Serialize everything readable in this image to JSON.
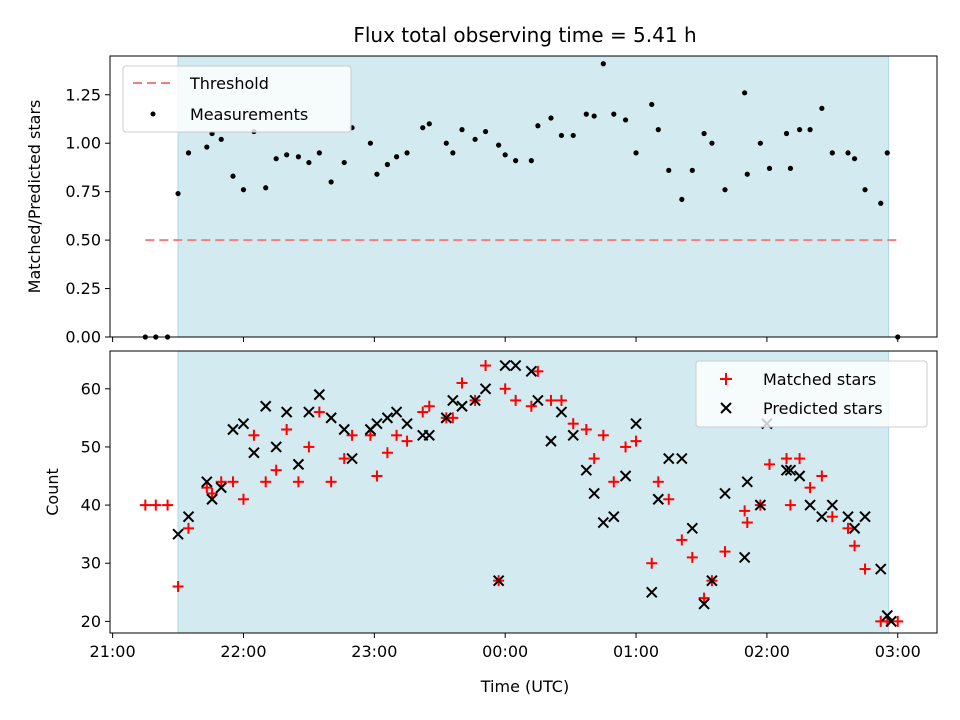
{
  "chart_data": [
    {
      "type": "scatter",
      "title": "Flux total observing time = 5.41 h",
      "xlabel": "",
      "ylabel": "Matched/Predicted stars",
      "ylim": [
        0,
        1.45
      ],
      "yticks": [
        "0.00",
        "0.25",
        "0.50",
        "0.75",
        "1.00",
        "1.25"
      ],
      "ytick_values": [
        0,
        0.25,
        0.5,
        0.75,
        1.0,
        1.25
      ],
      "xlim_hours": [
        21.0,
        3.3
      ],
      "shaded_span_hours": [
        21.5,
        2.93
      ],
      "shade_color": "#d3eaf0",
      "legend_position": "upper-left",
      "threshold": {
        "name": "Threshold",
        "y": 0.5,
        "x_start_hours": 21.25,
        "x_end_hours": 3.0,
        "color": "#f08080"
      },
      "series": [
        {
          "name": "Measurements",
          "color": "#000000",
          "points": [
            [
              21.25,
              0.0
            ],
            [
              21.33,
              0.0
            ],
            [
              21.42,
              0.0
            ],
            [
              21.5,
              0.74
            ],
            [
              21.58,
              0.95
            ],
            [
              21.72,
              0.98
            ],
            [
              21.76,
              1.05
            ],
            [
              21.83,
              1.02
            ],
            [
              21.92,
              0.83
            ],
            [
              22.0,
              0.76
            ],
            [
              22.08,
              1.06
            ],
            [
              22.17,
              0.77
            ],
            [
              22.25,
              0.92
            ],
            [
              22.33,
              0.94
            ],
            [
              22.42,
              0.93
            ],
            [
              22.5,
              0.9
            ],
            [
              22.58,
              0.95
            ],
            [
              22.67,
              0.8
            ],
            [
              22.77,
              0.9
            ],
            [
              22.83,
              1.08
            ],
            [
              22.97,
              1.0
            ],
            [
              23.02,
              0.84
            ],
            [
              23.1,
              0.89
            ],
            [
              23.17,
              0.93
            ],
            [
              23.25,
              0.95
            ],
            [
              23.37,
              1.08
            ],
            [
              23.42,
              1.1
            ],
            [
              23.55,
              1.0
            ],
            [
              23.6,
              0.95
            ],
            [
              23.67,
              1.07
            ],
            [
              23.77,
              1.02
            ],
            [
              23.85,
              1.06
            ],
            [
              23.95,
              0.99
            ],
            [
              24.0,
              0.94
            ],
            [
              24.08,
              0.91
            ],
            [
              24.2,
              0.91
            ],
            [
              24.25,
              1.09
            ],
            [
              24.35,
              1.13
            ],
            [
              24.43,
              1.04
            ],
            [
              24.52,
              1.04
            ],
            [
              24.62,
              1.15
            ],
            [
              24.68,
              1.14
            ],
            [
              24.75,
              1.41
            ],
            [
              24.83,
              1.15
            ],
            [
              24.92,
              1.12
            ],
            [
              25.0,
              0.95
            ],
            [
              25.12,
              1.2
            ],
            [
              25.17,
              1.07
            ],
            [
              25.25,
              0.86
            ],
            [
              25.35,
              0.71
            ],
            [
              25.43,
              0.86
            ],
            [
              25.52,
              1.05
            ],
            [
              25.58,
              1.0
            ],
            [
              25.68,
              0.76
            ],
            [
              25.83,
              1.26
            ],
            [
              25.85,
              0.84
            ],
            [
              25.95,
              1.0
            ],
            [
              26.02,
              0.87
            ],
            [
              26.15,
              1.05
            ],
            [
              26.18,
              0.87
            ],
            [
              26.25,
              1.07
            ],
            [
              26.33,
              1.07
            ],
            [
              26.42,
              1.18
            ],
            [
              26.5,
              0.95
            ],
            [
              26.62,
              0.95
            ],
            [
              26.67,
              0.92
            ],
            [
              26.75,
              0.76
            ],
            [
              26.87,
              0.69
            ],
            [
              26.92,
              0.95
            ],
            [
              27.0,
              0.0
            ]
          ]
        }
      ]
    },
    {
      "type": "scatter",
      "title": "",
      "xlabel": "Time (UTC)",
      "ylabel": "Count",
      "ylim": [
        18,
        66.5
      ],
      "yticks": [
        "20",
        "30",
        "40",
        "50",
        "60"
      ],
      "ytick_values": [
        20,
        30,
        40,
        50,
        60
      ],
      "xticks": [
        "21:00",
        "22:00",
        "23:00",
        "00:00",
        "01:00",
        "02:00",
        "03:00"
      ],
      "xtick_hours": [
        21,
        22,
        23,
        24,
        25,
        26,
        27
      ],
      "xlim_hours": [
        20.98,
        27.3
      ],
      "shaded_span_hours": [
        21.5,
        26.93
      ],
      "shade_color": "#d3eaf0",
      "legend_position": "upper-right",
      "series": [
        {
          "name": "Matched stars",
          "marker": "+",
          "color": "#ff0000",
          "points": [
            [
              21.25,
              40
            ],
            [
              21.33,
              40
            ],
            [
              21.42,
              40
            ],
            [
              21.5,
              26
            ],
            [
              21.58,
              36
            ],
            [
              21.72,
              43
            ],
            [
              21.76,
              42
            ],
            [
              21.83,
              44
            ],
            [
              21.92,
              44
            ],
            [
              22.0,
              41
            ],
            [
              22.08,
              52
            ],
            [
              22.17,
              44
            ],
            [
              22.25,
              46
            ],
            [
              22.33,
              53
            ],
            [
              22.42,
              44
            ],
            [
              22.5,
              50
            ],
            [
              22.58,
              56
            ],
            [
              22.67,
              44
            ],
            [
              22.77,
              48
            ],
            [
              22.83,
              52
            ],
            [
              22.97,
              52
            ],
            [
              23.02,
              45
            ],
            [
              23.1,
              49
            ],
            [
              23.17,
              52
            ],
            [
              23.25,
              51
            ],
            [
              23.37,
              56
            ],
            [
              23.42,
              57
            ],
            [
              23.55,
              55
            ],
            [
              23.6,
              55
            ],
            [
              23.67,
              61
            ],
            [
              23.77,
              58
            ],
            [
              23.85,
              64
            ],
            [
              23.95,
              27
            ],
            [
              24.0,
              60
            ],
            [
              24.08,
              58
            ],
            [
              24.2,
              57
            ],
            [
              24.25,
              63
            ],
            [
              24.35,
              58
            ],
            [
              24.43,
              58
            ],
            [
              24.52,
              54
            ],
            [
              24.62,
              53
            ],
            [
              24.68,
              48
            ],
            [
              24.75,
              52
            ],
            [
              24.83,
              44
            ],
            [
              24.92,
              50
            ],
            [
              25.0,
              51
            ],
            [
              25.12,
              30
            ],
            [
              25.17,
              44
            ],
            [
              25.25,
              41
            ],
            [
              25.35,
              34
            ],
            [
              25.43,
              31
            ],
            [
              25.52,
              24
            ],
            [
              25.58,
              27
            ],
            [
              25.68,
              32
            ],
            [
              25.83,
              39
            ],
            [
              25.85,
              37
            ],
            [
              25.95,
              40
            ],
            [
              26.02,
              47
            ],
            [
              26.15,
              48
            ],
            [
              26.18,
              40
            ],
            [
              26.25,
              48
            ],
            [
              26.33,
              43
            ],
            [
              26.42,
              45
            ],
            [
              26.5,
              38
            ],
            [
              26.62,
              36
            ],
            [
              26.67,
              33
            ],
            [
              26.75,
              29
            ],
            [
              26.87,
              20
            ],
            [
              26.92,
              20
            ],
            [
              27.0,
              20
            ]
          ]
        },
        {
          "name": "Predicted stars",
          "marker": "x",
          "color": "#000000",
          "points": [
            [
              21.5,
              35
            ],
            [
              21.58,
              38
            ],
            [
              21.72,
              44
            ],
            [
              21.76,
              41
            ],
            [
              21.83,
              43
            ],
            [
              21.92,
              53
            ],
            [
              22.0,
              54
            ],
            [
              22.08,
              49
            ],
            [
              22.17,
              57
            ],
            [
              22.25,
              50
            ],
            [
              22.33,
              56
            ],
            [
              22.42,
              47
            ],
            [
              22.5,
              56
            ],
            [
              22.58,
              59
            ],
            [
              22.67,
              55
            ],
            [
              22.77,
              53
            ],
            [
              22.83,
              48
            ],
            [
              22.97,
              53
            ],
            [
              23.02,
              54
            ],
            [
              23.1,
              55
            ],
            [
              23.17,
              56
            ],
            [
              23.25,
              54
            ],
            [
              23.37,
              52
            ],
            [
              23.42,
              52
            ],
            [
              23.55,
              55
            ],
            [
              23.6,
              58
            ],
            [
              23.67,
              57
            ],
            [
              23.77,
              58
            ],
            [
              23.85,
              60
            ],
            [
              23.95,
              27
            ],
            [
              24.0,
              64
            ],
            [
              24.08,
              64
            ],
            [
              24.2,
              63
            ],
            [
              24.25,
              58
            ],
            [
              24.35,
              51
            ],
            [
              24.43,
              56
            ],
            [
              24.52,
              52
            ],
            [
              24.62,
              46
            ],
            [
              24.68,
              42
            ],
            [
              24.75,
              37
            ],
            [
              24.83,
              38
            ],
            [
              24.92,
              45
            ],
            [
              25.0,
              54
            ],
            [
              25.12,
              25
            ],
            [
              25.17,
              41
            ],
            [
              25.25,
              48
            ],
            [
              25.35,
              48
            ],
            [
              25.43,
              36
            ],
            [
              25.52,
              23
            ],
            [
              25.58,
              27
            ],
            [
              25.68,
              42
            ],
            [
              25.83,
              31
            ],
            [
              25.85,
              44
            ],
            [
              25.95,
              40
            ],
            [
              26.0,
              54
            ],
            [
              26.15,
              46
            ],
            [
              26.18,
              46
            ],
            [
              26.25,
              45
            ],
            [
              26.33,
              40
            ],
            [
              26.42,
              38
            ],
            [
              26.5,
              40
            ],
            [
              26.62,
              38
            ],
            [
              26.67,
              36
            ],
            [
              26.75,
              38
            ],
            [
              26.87,
              29
            ],
            [
              26.92,
              21
            ],
            [
              26.95,
              20
            ]
          ]
        }
      ]
    }
  ]
}
